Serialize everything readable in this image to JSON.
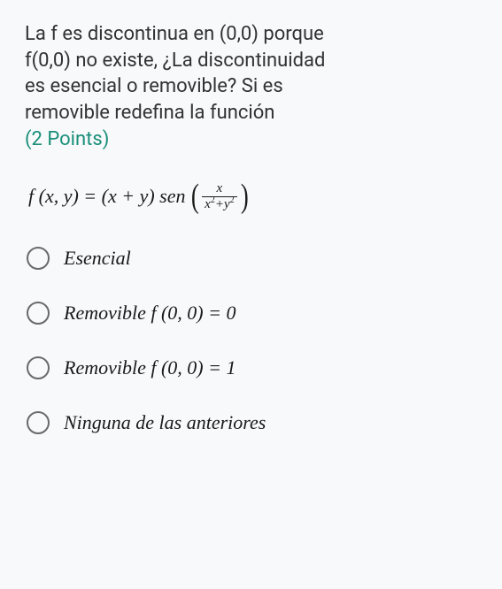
{
  "question": {
    "line1": "La f es discontinua en (0,0) porque",
    "line2": "f(0,0) no existe, ¿La discontinuidad",
    "line3": "es esencial o removible? Si es",
    "line4": "removible redefina la función",
    "points_label": "(2 Points)"
  },
  "formula": {
    "lhs": "f (x, y) = (x + y) sen",
    "frac_num": "x",
    "frac_den_html": "x<sup>2</sup>+y<sup>2</sup>"
  },
  "options": [
    {
      "name": "option-esencial",
      "label_html": "Esencial"
    },
    {
      "name": "option-removible-0",
      "label_html": "Removible f (0, 0) = 0"
    },
    {
      "name": "option-removible-1",
      "label_html": "Removible f (0, 0) = 1"
    },
    {
      "name": "option-ninguna",
      "label_html": "Ninguna de las anteriores"
    }
  ],
  "style": {
    "background": "#f8f9fa",
    "text_color": "#2a2a2a",
    "points_color": "#1a8f7a",
    "radio_border": "#6a6a6a",
    "question_fontsize": 22,
    "option_fontsize": 22
  }
}
